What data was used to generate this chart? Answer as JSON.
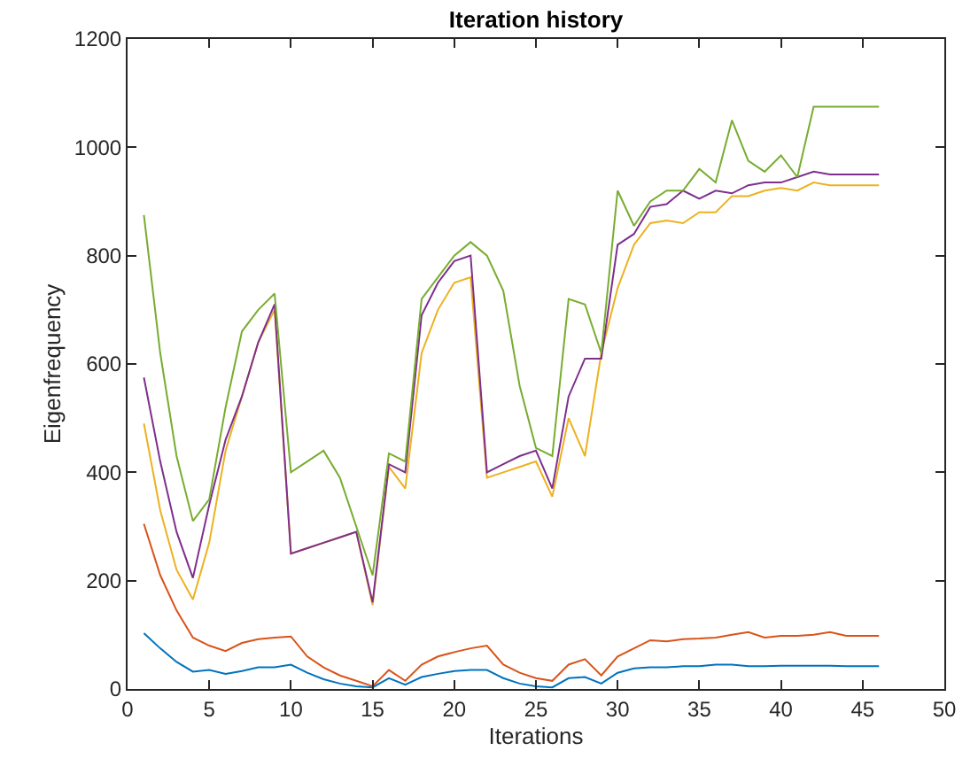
{
  "chart_data": {
    "type": "line",
    "title": "Iteration history",
    "xlabel": "Iterations",
    "ylabel": "Eigenfrequency",
    "x": [
      1,
      2,
      3,
      4,
      5,
      6,
      7,
      8,
      9,
      10,
      11,
      12,
      13,
      14,
      15,
      16,
      17,
      18,
      19,
      20,
      21,
      22,
      23,
      24,
      25,
      26,
      27,
      28,
      29,
      30,
      31,
      32,
      33,
      34,
      35,
      36,
      37,
      38,
      39,
      40,
      41,
      42,
      43,
      44,
      45,
      46
    ],
    "series": [
      {
        "color": "#0072bd",
        "values": [
          103,
          75,
          50,
          32,
          35,
          28,
          33,
          40,
          40,
          45,
          30,
          18,
          10,
          5,
          3,
          20,
          8,
          22,
          28,
          33,
          35,
          35,
          20,
          10,
          5,
          3,
          20,
          22,
          10,
          30,
          38,
          40,
          40,
          42,
          42,
          45,
          45,
          42,
          42,
          43,
          43,
          43,
          43,
          42,
          42,
          42
        ]
      },
      {
        "color": "#d95319",
        "values": [
          305,
          210,
          145,
          95,
          80,
          70,
          85,
          92,
          95,
          97,
          60,
          40,
          25,
          15,
          5,
          35,
          15,
          45,
          60,
          68,
          75,
          80,
          45,
          30,
          20,
          15,
          45,
          55,
          25,
          60,
          75,
          90,
          88,
          92,
          93,
          95,
          100,
          105,
          95,
          98,
          98,
          100,
          105,
          98,
          98,
          98
        ]
      },
      {
        "color": "#edb120",
        "values": [
          490,
          330,
          220,
          165,
          270,
          440,
          540,
          640,
          700,
          250,
          260,
          270,
          280,
          290,
          155,
          410,
          370,
          620,
          700,
          750,
          760,
          390,
          400,
          410,
          420,
          355,
          500,
          430,
          620,
          740,
          820,
          860,
          865,
          860,
          880,
          880,
          910,
          910,
          920,
          925,
          920,
          935,
          930,
          930,
          930,
          930
        ]
      },
      {
        "color": "#7e2f8e",
        "values": [
          575,
          420,
          290,
          205,
          340,
          460,
          540,
          640,
          710,
          250,
          260,
          270,
          280,
          290,
          160,
          415,
          400,
          690,
          750,
          790,
          800,
          400,
          415,
          430,
          440,
          370,
          540,
          610,
          610,
          820,
          840,
          890,
          895,
          920,
          905,
          920,
          915,
          930,
          935,
          935,
          945,
          955,
          950,
          950,
          950,
          950
        ]
      },
      {
        "color": "#77ac30",
        "values": [
          875,
          620,
          430,
          310,
          350,
          520,
          660,
          700,
          730,
          400,
          420,
          440,
          390,
          300,
          210,
          435,
          420,
          720,
          760,
          800,
          825,
          800,
          735,
          560,
          445,
          430,
          720,
          710,
          620,
          920,
          855,
          900,
          920,
          920,
          960,
          935,
          1050,
          975,
          955,
          985,
          945,
          1075,
          1075,
          1075,
          1075,
          1075
        ]
      }
    ],
    "xlim": [
      0,
      50
    ],
    "xticks": [
      0,
      5,
      10,
      15,
      20,
      25,
      30,
      35,
      40,
      45,
      50
    ],
    "ylim": [
      0,
      1200
    ],
    "yticks": [
      0,
      200,
      400,
      600,
      800,
      1000,
      1200
    ],
    "legend": false,
    "marker": "none",
    "line_style": "solid"
  }
}
